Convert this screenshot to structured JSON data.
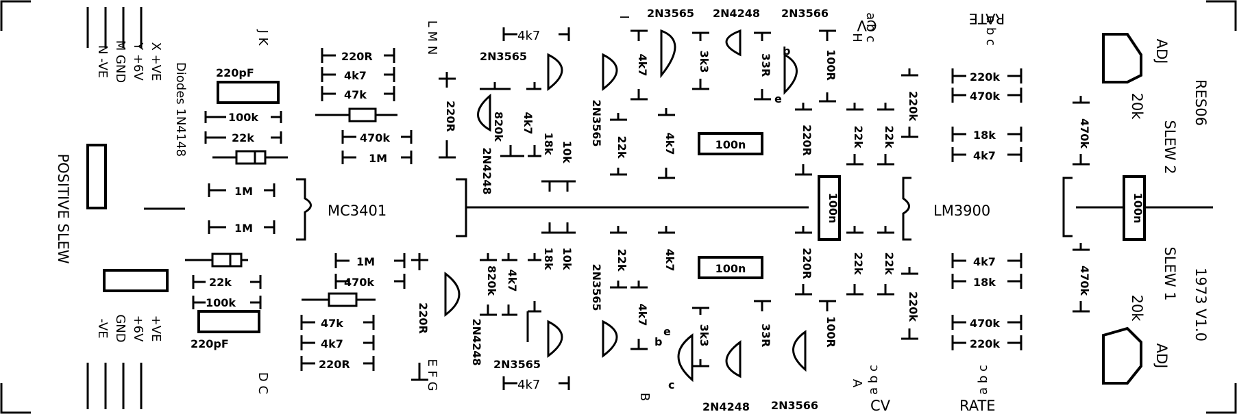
{
  "labels": {
    "positive_slew": "POSITIVE SLEW",
    "diodes": "Diodes 1N4148",
    "reso6": "RES06",
    "slew2": "SLEW 2",
    "slew1": "SLEW 1",
    "version": "1973 V1.0",
    "adj_top": "ADJ",
    "adj_bot": "ADJ",
    "pot_top": "20k",
    "pot_bot": "20k",
    "mc3401": "MC3401",
    "lm3900": "LM3900",
    "cv_top": "CV",
    "cv_bot": "CV",
    "rate_top": "RATE",
    "rate_bot": "RATE",
    "abc_top_cv": "a b c",
    "abc_top_rate": "a b c",
    "abc_bot_cv": "a b c",
    "abc_bot_rate": "a b c",
    "letters_top_jk": "J K",
    "letters_top_lmn": "L M N",
    "letter_i": "I",
    "letter_h": "H",
    "letters_bot_dc": "D C",
    "letters_bot_efg": "E F G",
    "letter_b": "B",
    "letter_a": "A"
  },
  "power_top": [
    "X +VE",
    "Y +6V",
    "M GND",
    "N -VE"
  ],
  "power_bot": [
    "+VE",
    "+6V",
    "GND",
    "-VE"
  ],
  "components": {
    "c220pf": "220pF",
    "r100k": "100k",
    "r22k": "22k",
    "r1m": "1M",
    "r220r": "220R",
    "r4k7": "4k7",
    "r47k": "47k",
    "r470k": "470k",
    "r820k": "820k",
    "r18k": "18k",
    "r10k": "10k",
    "r3k3": "3k3",
    "r33r": "33R",
    "r100r": "100R",
    "r220k": "220k",
    "c100n": "100n",
    "q2n3565": "2N3565",
    "q2n4248": "2N4248",
    "q2n3566": "2N3566",
    "pin_e": "e",
    "pin_b": "b",
    "pin_c": "c"
  }
}
